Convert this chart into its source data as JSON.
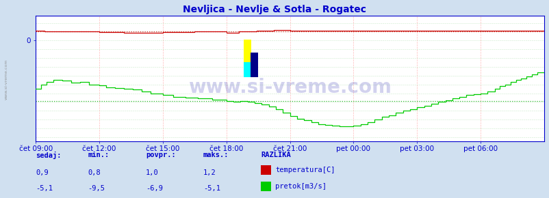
{
  "title": "Nevljica - Nevlje & Sotla - Rogatec",
  "title_color": "#0000cc",
  "bg_color": "#d0e0f0",
  "plot_bg_color": "#ffffff",
  "grid_color_v": "#ffaaaa",
  "grid_color_h": "#aaddaa",
  "x_tick_labels": [
    "čet 09:00",
    "čet 12:00",
    "čet 15:00",
    "čet 18:00",
    "čet 21:00",
    "pet 00:00",
    "pet 03:00",
    "pet 06:00"
  ],
  "x_tick_positions": [
    0,
    36,
    72,
    108,
    144,
    180,
    216,
    252
  ],
  "n_points": 289,
  "temp_color": "#cc0000",
  "flow_color": "#00cc00",
  "temp_dotted_color": "#cc0000",
  "flow_dotted_color": "#00aa00",
  "watermark_text": "www.si-vreme.com",
  "watermark_color": "#2222aa",
  "watermark_alpha": 0.2,
  "legend_header": "RAZLIKA",
  "legend_items": [
    "temperatura[C]",
    "pretok[m3/s]"
  ],
  "legend_colors": [
    "#cc0000",
    "#00cc00"
  ],
  "stats_headers": [
    "sedaj:",
    "min.:",
    "povpr.:",
    "maks.:"
  ],
  "stats_temp": [
    "0,9",
    "0,8",
    "1,0",
    "1,2"
  ],
  "stats_flow": [
    "-5,1",
    "-9,5",
    "-6,9",
    "-5,1"
  ],
  "temp_avg": 1.0,
  "flow_avg": -6.9,
  "axis_label_color": "#0000cc",
  "stats_color": "#0000cc",
  "ylim_min": -11.5,
  "ylim_max": 2.8
}
